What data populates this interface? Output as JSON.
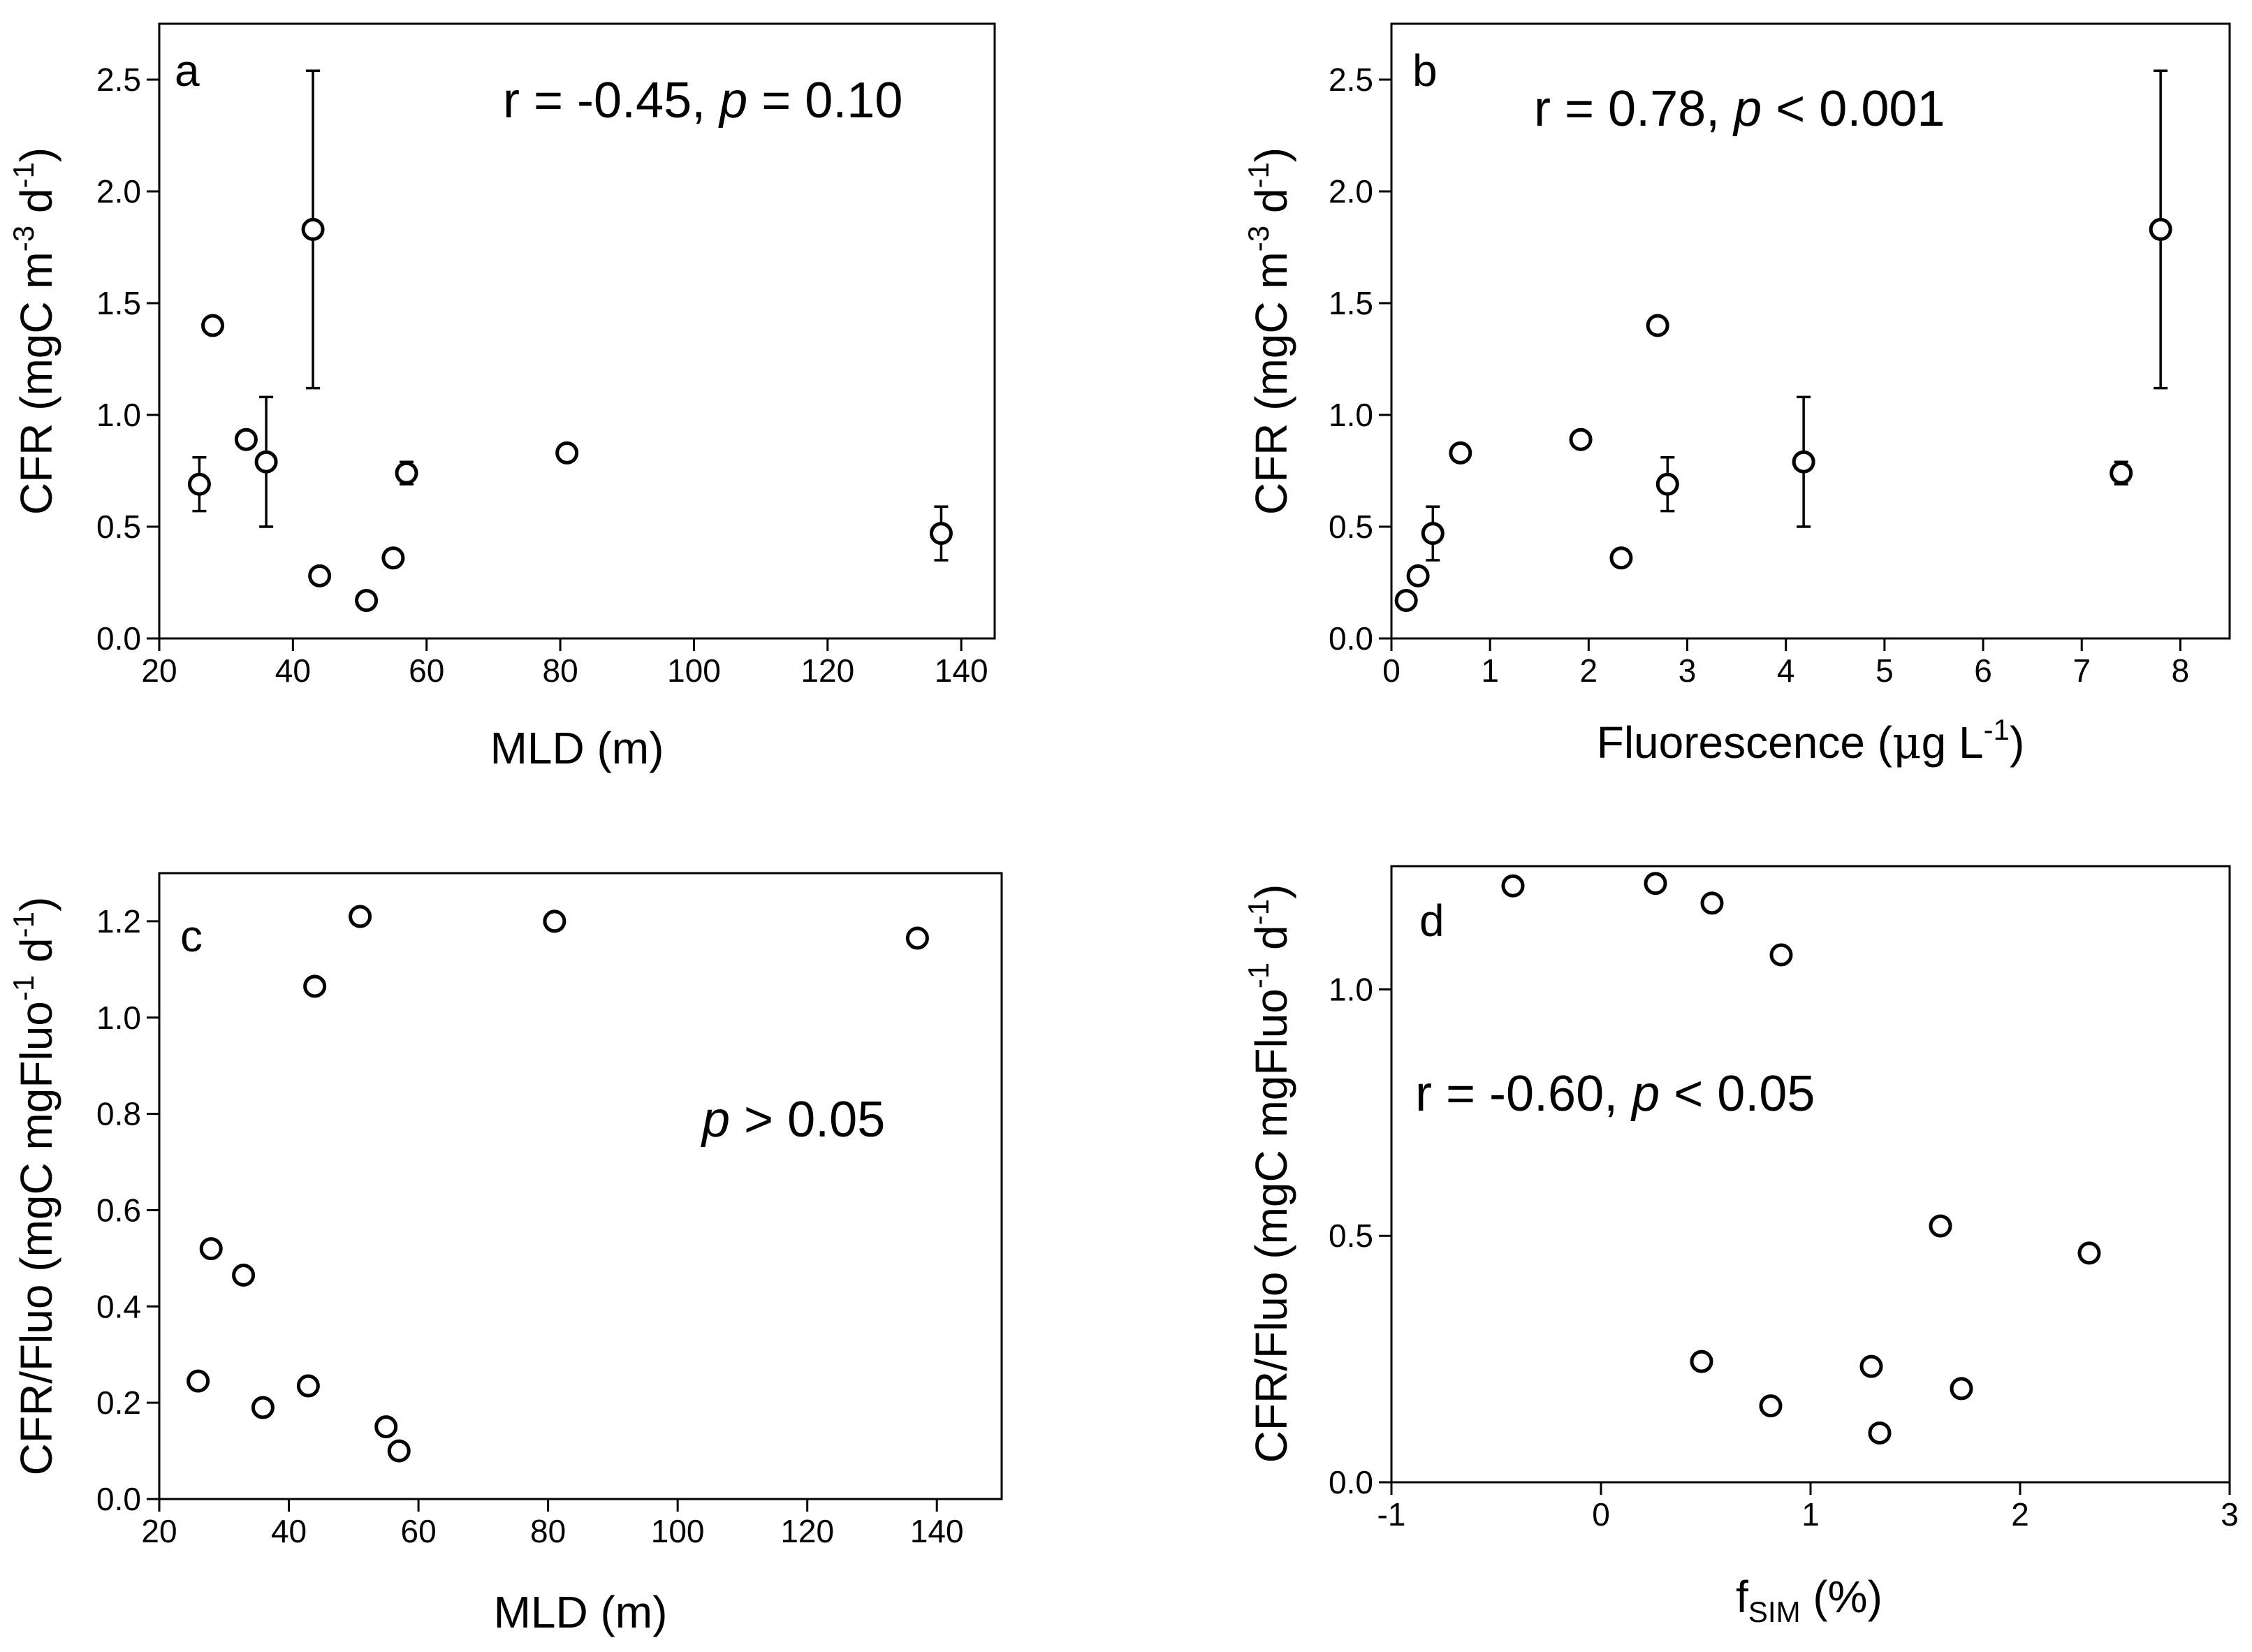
{
  "chart_data": [
    {
      "panel": "a",
      "type": "scatter",
      "xlabel": "MLD (m)",
      "ylabel": "CFR (mgC m⁻³ d⁻¹)",
      "ylabel_parts": {
        "pre": "CFR (mgC m",
        "sup1": "-3",
        "mid": " d",
        "sup2": "-1",
        "post": ")"
      },
      "xlim": [
        20,
        145
      ],
      "ylim": [
        0,
        2.75
      ],
      "xticks": [
        20,
        40,
        60,
        80,
        100,
        120,
        140
      ],
      "xtick_labels": [
        "20",
        "40",
        "60",
        "80",
        "100",
        "120",
        "140"
      ],
      "yticks": [
        0,
        0.5,
        1.0,
        1.5,
        2.0,
        2.5
      ],
      "ytick_labels": [
        "0.0",
        "0.5",
        "1.0",
        "1.5",
        "2.0",
        "2.5"
      ],
      "annotation": {
        "pre": "r = -0.45, ",
        "p": "p",
        "post": " = 0.10"
      },
      "points": [
        {
          "x": 26,
          "y": 0.69,
          "err": 0.12
        },
        {
          "x": 28,
          "y": 1.4,
          "err": 0.03
        },
        {
          "x": 33,
          "y": 0.89,
          "err": 0
        },
        {
          "x": 36,
          "y": 0.79,
          "err": 0.29
        },
        {
          "x": 43,
          "y": 1.83,
          "err": 0.71
        },
        {
          "x": 44,
          "y": 0.28,
          "err": 0.03
        },
        {
          "x": 51,
          "y": 0.17,
          "err": 0
        },
        {
          "x": 55,
          "y": 0.36,
          "err": 0.03
        },
        {
          "x": 57,
          "y": 0.74,
          "err": 0.05
        },
        {
          "x": 81,
          "y": 0.83,
          "err": 0.02
        },
        {
          "x": 137,
          "y": 0.47,
          "err": 0.12
        }
      ]
    },
    {
      "panel": "b",
      "type": "scatter",
      "xlabel": "Fluorescence (μg L⁻¹)",
      "xlabel_parts": {
        "pre": "Fluorescence (",
        "mu": "μ",
        "mid": "g L",
        "sup": "-1",
        "post": ")"
      },
      "ylabel": "CFR (mgC m⁻³ d⁻¹)",
      "ylabel_parts": {
        "pre": "CFR (mgC m",
        "sup1": "-3",
        "mid": " d",
        "sup2": "-1",
        "post": ")"
      },
      "xlim": [
        0,
        8.5
      ],
      "ylim": [
        0,
        2.75
      ],
      "xticks": [
        0,
        1,
        2,
        3,
        4,
        5,
        6,
        7,
        8
      ],
      "xtick_labels": [
        "0",
        "1",
        "2",
        "3",
        "4",
        "5",
        "6",
        "7",
        "8"
      ],
      "yticks": [
        0,
        0.5,
        1.0,
        1.5,
        2.0,
        2.5
      ],
      "ytick_labels": [
        "0.0",
        "0.5",
        "1.0",
        "1.5",
        "2.0",
        "2.5"
      ],
      "annotation": {
        "pre": "r = 0.78, ",
        "p": "p",
        "post": " < 0.001"
      },
      "points": [
        {
          "x": 0.15,
          "y": 0.17,
          "err": 0
        },
        {
          "x": 0.27,
          "y": 0.28,
          "err": 0.03
        },
        {
          "x": 0.42,
          "y": 0.47,
          "err": 0.12
        },
        {
          "x": 0.7,
          "y": 0.83,
          "err": 0.02
        },
        {
          "x": 1.92,
          "y": 0.89,
          "err": 0
        },
        {
          "x": 2.33,
          "y": 0.36,
          "err": 0.03
        },
        {
          "x": 2.7,
          "y": 1.4,
          "err": 0.03
        },
        {
          "x": 2.8,
          "y": 0.69,
          "err": 0.12
        },
        {
          "x": 4.18,
          "y": 0.79,
          "err": 0.29
        },
        {
          "x": 7.4,
          "y": 0.74,
          "err": 0.05
        },
        {
          "x": 7.8,
          "y": 1.83,
          "err": 0.71
        }
      ]
    },
    {
      "panel": "c",
      "type": "scatter",
      "xlabel": "MLD (m)",
      "ylabel": "CFR/Fluo (mgC mgFluo⁻¹ d⁻¹)",
      "ylabel_parts": {
        "pre": "CFR/Fluo (mgC mgFluo",
        "sup1": "-1",
        "mid": " d",
        "sup2": "-1",
        "post": ")"
      },
      "xlim": [
        20,
        150
      ],
      "ylim": [
        0,
        1.3
      ],
      "xticks": [
        20,
        40,
        60,
        80,
        100,
        120,
        140
      ],
      "xtick_labels": [
        "20",
        "40",
        "60",
        "80",
        "100",
        "120",
        "140"
      ],
      "yticks": [
        0,
        0.2,
        0.4,
        0.6,
        0.8,
        1.0,
        1.2
      ],
      "ytick_labels": [
        "0.0",
        "0.2",
        "0.4",
        "0.6",
        "0.8",
        "1.0",
        "1.2"
      ],
      "annotation": {
        "pre": "",
        "p": "p",
        "post": " > 0.05"
      },
      "points": [
        {
          "x": 26,
          "y": 0.245
        },
        {
          "x": 28,
          "y": 0.52
        },
        {
          "x": 33,
          "y": 0.465
        },
        {
          "x": 36,
          "y": 0.19
        },
        {
          "x": 43,
          "y": 0.235
        },
        {
          "x": 44,
          "y": 1.065
        },
        {
          "x": 51,
          "y": 1.21
        },
        {
          "x": 55,
          "y": 0.15
        },
        {
          "x": 57,
          "y": 0.1
        },
        {
          "x": 81,
          "y": 1.2
        },
        {
          "x": 137,
          "y": 1.165
        }
      ]
    },
    {
      "panel": "d",
      "type": "scatter",
      "xlabel": "f_SIM (%)",
      "xlabel_parts": {
        "pre": "f",
        "sub": "SIM",
        "post": " (%)"
      },
      "ylabel": "CFR/Fluo (mgC mgFluo⁻¹ d⁻¹)",
      "ylabel_parts": {
        "pre": "CFR/Fluo (mgC mgFluo",
        "sup1": "-1",
        "mid": " d",
        "sup2": "-1",
        "post": ")"
      },
      "xlim": [
        -1,
        3
      ],
      "ylim": [
        0,
        1.25
      ],
      "xticks": [
        -1,
        0,
        1,
        2,
        3
      ],
      "xtick_labels": [
        "-1",
        "0",
        "1",
        "2",
        "3"
      ],
      "yticks": [
        0,
        0.5,
        1.0
      ],
      "ytick_labels": [
        "0.0",
        "0.5",
        "1.0"
      ],
      "annotation": {
        "pre": "r = -0.60, ",
        "p": "p",
        "post": " < 0.05"
      },
      "points": [
        {
          "x": -0.42,
          "y": 1.21
        },
        {
          "x": 0.26,
          "y": 1.215
        },
        {
          "x": 0.53,
          "y": 1.175
        },
        {
          "x": 0.86,
          "y": 1.07
        },
        {
          "x": 0.48,
          "y": 0.245
        },
        {
          "x": 0.81,
          "y": 0.155
        },
        {
          "x": 1.29,
          "y": 0.235
        },
        {
          "x": 1.33,
          "y": 0.1
        },
        {
          "x": 1.62,
          "y": 0.52
        },
        {
          "x": 1.72,
          "y": 0.19
        },
        {
          "x": 2.33,
          "y": 0.465
        }
      ]
    }
  ]
}
